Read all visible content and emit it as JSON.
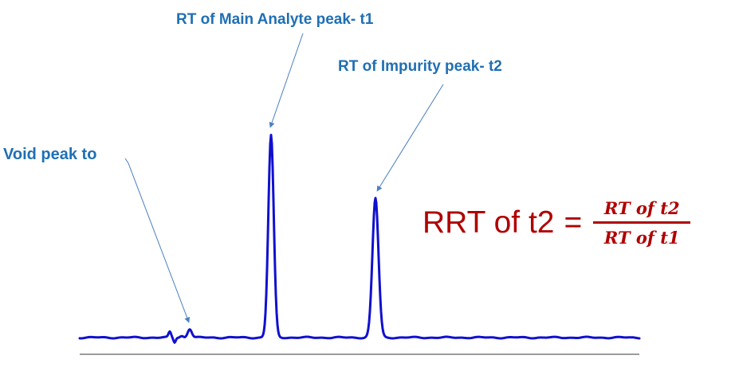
{
  "labels": {
    "main_peak": "RT of Main Analyte peak- t1",
    "impurity_peak": "RT of Impurity peak- t2",
    "void_peak": "Void peak to"
  },
  "formula": {
    "lhs": "RRT of t2",
    "equals": "=",
    "numerator": "RT of t2",
    "denominator": "RT of t1"
  },
  "colors": {
    "label_text": "#1f6fb4",
    "trace": "#1010d0",
    "arrow": "#4a7fc0",
    "baseline": "#7a7a7a",
    "formula": "#b00000"
  }
}
